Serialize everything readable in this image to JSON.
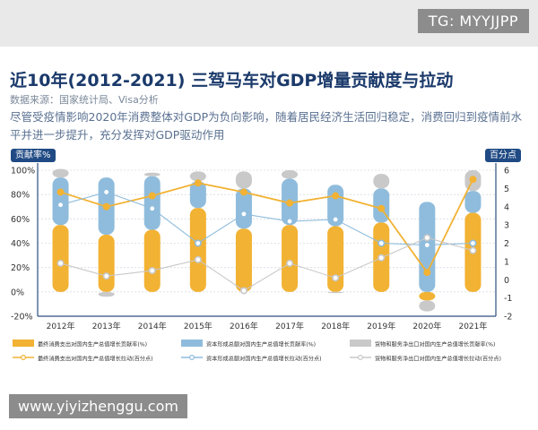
{
  "watermark_top": "TG: MYYJJPP",
  "watermark_bottom": "www.yiyizhenggu.com",
  "header": {
    "title": "近10年(2012-2021) 三驾马车对GDP增量贡献度与拉动",
    "source": "数据来源：国家统计局、Visa分析",
    "description": "尽管受疫情影响2020年消费整体对GDP为负向影响，随着居民经济生活回归稳定，消费回归到疫情前水平并进一步提升，充分发挥对GDP驱动作用"
  },
  "colors": {
    "consumption": "#f2b233",
    "investment": "#8fbcdc",
    "netexport": "#c9c9c9",
    "consumption_line": "#f2b233",
    "investment_line": "#8fbcdc",
    "netexport_line": "#c8c8c8",
    "badge": "#1f4a84"
  },
  "chart_data": {
    "type": "bar+line",
    "categories": [
      "2012年",
      "2013年",
      "2014年",
      "2015年",
      "2016年",
      "2017年",
      "2018年",
      "2019年",
      "2020年",
      "2021年"
    ],
    "left_axis": {
      "label": "贡献率%",
      "ylim": [
        -20,
        100
      ],
      "ticks": [
        "-20%",
        "0%",
        "20%",
        "40%",
        "60%",
        "80%",
        "100%"
      ],
      "tick_values": [
        -20,
        0,
        20,
        40,
        60,
        80,
        100
      ]
    },
    "right_axis": {
      "label": "百分点",
      "ylim": [
        -2,
        6
      ],
      "ticks": [
        "-2",
        "-1",
        "0",
        "1",
        "2",
        "3",
        "4",
        "5",
        "6"
      ],
      "tick_values": [
        -2,
        -1,
        0,
        1,
        2,
        3,
        4,
        5,
        6
      ]
    },
    "bar_series": [
      {
        "name": "最终消费支出对国内生产总值增长贡献率(%)",
        "key": "consumption",
        "values": [
          55,
          47,
          51,
          69,
          52,
          55,
          54,
          57,
          -7,
          65
        ]
      },
      {
        "name": "资本形成总额对国内生产总值增长贡献率(%)",
        "key": "investment",
        "values": [
          39,
          47,
          44,
          22,
          33,
          38,
          34,
          28,
          74,
          18
        ]
      },
      {
        "name": "货物和服务净出口对国内生产总值增长贡献率(%)",
        "key": "netexport",
        "values": [
          7,
          -4,
          3,
          8,
          14,
          7,
          -1,
          12,
          -9,
          17
        ]
      }
    ],
    "line_series": [
      {
        "name": "最终消费支出对国内生产总值增长拉动(百分点)",
        "key": "consumption_line",
        "values": [
          4.8,
          4.0,
          4.6,
          5.3,
          4.8,
          4.2,
          4.6,
          3.9,
          0.4,
          5.5
        ]
      },
      {
        "name": "资本形成总额对国内生产总值增长拉动(百分点)",
        "key": "investment_line",
        "values": [
          4.1,
          4.8,
          3.9,
          2.0,
          3.6,
          3.2,
          3.3,
          2.0,
          1.9,
          2.0
        ]
      },
      {
        "name": "货物和服务净出口对国内生产总值增长拉动(百分点)",
        "key": "netexport_line",
        "values": [
          0.9,
          0.2,
          0.5,
          1.1,
          -0.6,
          0.9,
          0.1,
          1.2,
          2.3,
          1.6
        ]
      }
    ]
  }
}
